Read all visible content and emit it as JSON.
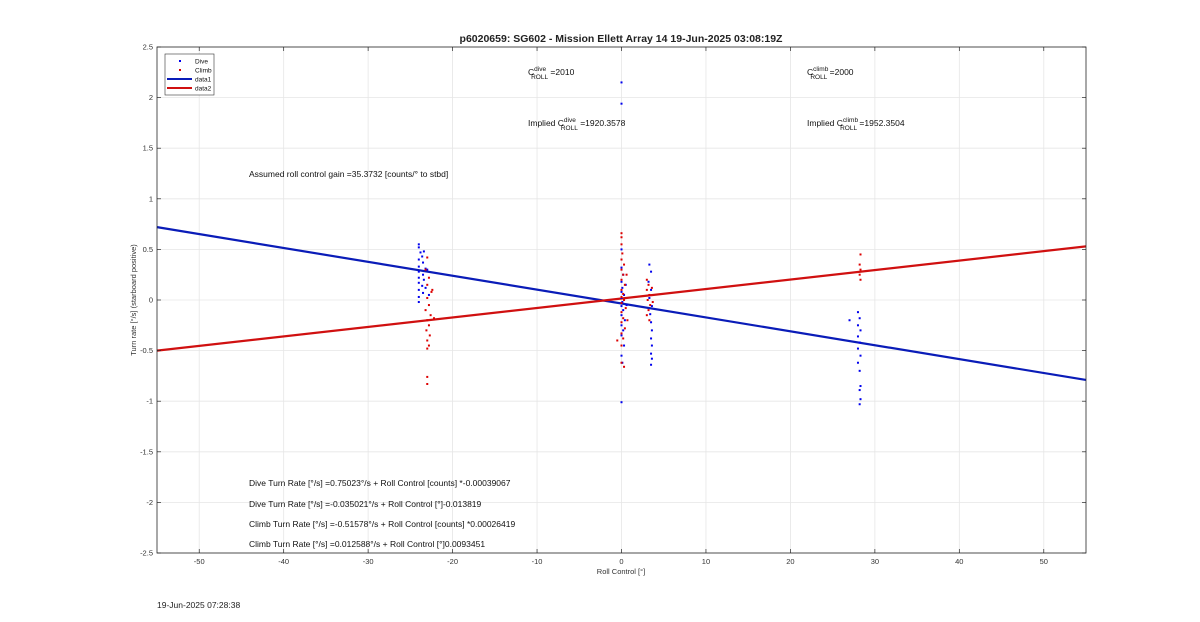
{
  "footer_timestamp": "19-Jun-2025 07:28:38",
  "chart_data": {
    "type": "scatter",
    "title": "p6020659: SG602 - Mission Ellett Array 14 19-Jun-2025 03:08:19Z",
    "xlabel": "Roll Control [°]",
    "ylabel": "Turn rate [°/s] (starboard positive)",
    "xlim": [
      -55,
      55
    ],
    "ylim": [
      -2.5,
      2.5
    ],
    "xticks": [
      -50,
      -40,
      -30,
      -20,
      -10,
      0,
      10,
      20,
      30,
      40,
      50
    ],
    "yticks": [
      -2.5,
      -2,
      -1.5,
      -1,
      -0.5,
      0,
      0.5,
      1,
      1.5,
      2,
      2.5
    ],
    "grid": true,
    "legend_position": "top-left",
    "colors": {
      "blue": "#0000ee",
      "red": "#dd0000",
      "line_blue": "#0a1cb8",
      "line_red": "#d01010"
    },
    "legend": [
      {
        "label": "Dive",
        "kind": "marker",
        "color": "#0000ee"
      },
      {
        "label": "Climb",
        "kind": "marker",
        "color": "#dd0000"
      },
      {
        "label": "data1",
        "kind": "line",
        "color": "#0a1cb8"
      },
      {
        "label": "data2",
        "kind": "line",
        "color": "#d01010"
      }
    ],
    "lines": [
      {
        "name": "data1",
        "color": "#0a1cb8",
        "x": [
          -55,
          55
        ],
        "y": [
          0.72,
          -0.79
        ]
      },
      {
        "name": "data2",
        "color": "#d01010",
        "x": [
          -55,
          55
        ],
        "y": [
          -0.5,
          0.53
        ]
      }
    ],
    "series": [
      {
        "name": "Dive",
        "color": "#0000ee",
        "points": [
          [
            -24,
            0.55
          ],
          [
            -24,
            0.52
          ],
          [
            -23.8,
            0.47
          ],
          [
            -23.6,
            0.43
          ],
          [
            -24,
            0.4
          ],
          [
            -23.5,
            0.37
          ],
          [
            -24,
            0.33
          ],
          [
            -23.2,
            0.31
          ],
          [
            -24,
            0.28
          ],
          [
            -23.5,
            0.25
          ],
          [
            -24,
            0.22
          ],
          [
            -23.4,
            0.2
          ],
          [
            -24,
            0.17
          ],
          [
            -23.6,
            0.14
          ],
          [
            -24,
            0.1
          ],
          [
            -23.5,
            0.07
          ],
          [
            -24,
            0.03
          ],
          [
            -24,
            -0.02
          ],
          [
            -23.4,
            0.48
          ],
          [
            -23,
            0.3
          ],
          [
            -23.2,
            0.12
          ],
          [
            -22.8,
            0.05
          ],
          [
            0,
            2.15
          ],
          [
            0,
            1.94
          ],
          [
            0,
            0.5
          ],
          [
            0,
            0.4
          ],
          [
            0,
            0.32
          ],
          [
            0.2,
            0.25
          ],
          [
            0,
            0.18
          ],
          [
            0.1,
            0.12
          ],
          [
            0,
            0.08
          ],
          [
            0.3,
            0.05
          ],
          [
            0,
            0.02
          ],
          [
            0.1,
            -0.02
          ],
          [
            0,
            -0.06
          ],
          [
            0.2,
            -0.1
          ],
          [
            0,
            -0.15
          ],
          [
            0.4,
            -0.2
          ],
          [
            0,
            -0.25
          ],
          [
            0.2,
            -0.3
          ],
          [
            0,
            -0.35
          ],
          [
            0.3,
            -0.45
          ],
          [
            0,
            -0.55
          ],
          [
            0.1,
            -0.62
          ],
          [
            0,
            -1.01
          ],
          [
            0.5,
            0.15
          ],
          [
            0.6,
            -0.05
          ],
          [
            3.3,
            0.35
          ],
          [
            3.5,
            0.28
          ],
          [
            3.2,
            0.18
          ],
          [
            3.5,
            0.1
          ],
          [
            3.3,
            0.02
          ],
          [
            3.6,
            -0.06
          ],
          [
            3.4,
            -0.14
          ],
          [
            3.5,
            -0.22
          ],
          [
            3.6,
            -0.3
          ],
          [
            3.5,
            -0.38
          ],
          [
            3.6,
            -0.45
          ],
          [
            3.5,
            -0.53
          ],
          [
            3.6,
            -0.58
          ],
          [
            3.5,
            -0.64
          ],
          [
            27,
            -0.2
          ],
          [
            28,
            -0.12
          ],
          [
            28.2,
            -0.18
          ],
          [
            28,
            -0.25
          ],
          [
            28.3,
            -0.3
          ],
          [
            28,
            -0.36
          ],
          [
            28.2,
            -0.42
          ],
          [
            28,
            -0.48
          ],
          [
            28.3,
            -0.55
          ],
          [
            28,
            -0.62
          ],
          [
            28.2,
            -0.7
          ],
          [
            28.3,
            -0.85
          ],
          [
            28.2,
            -0.89
          ],
          [
            28.3,
            -0.98
          ],
          [
            28.2,
            -1.03
          ]
        ]
      },
      {
        "name": "Climb",
        "color": "#dd0000",
        "points": [
          [
            -23,
            0.42
          ],
          [
            -23.2,
            0.3
          ],
          [
            -22.8,
            0.22
          ],
          [
            -23,
            0.15
          ],
          [
            -22.5,
            0.08
          ],
          [
            -23,
            0.02
          ],
          [
            -22.8,
            -0.05
          ],
          [
            -23.2,
            -0.1
          ],
          [
            -22.6,
            -0.15
          ],
          [
            -23,
            -0.2
          ],
          [
            -22.8,
            -0.25
          ],
          [
            -23.1,
            -0.3
          ],
          [
            -22.7,
            -0.35
          ],
          [
            -23,
            -0.4
          ],
          [
            -22.8,
            -0.45
          ],
          [
            -23,
            -0.48
          ],
          [
            -23,
            -0.76
          ],
          [
            -23,
            -0.83
          ],
          [
            -22.4,
            0.1
          ],
          [
            -22.2,
            -0.18
          ],
          [
            0,
            0.66
          ],
          [
            0,
            0.62
          ],
          [
            0,
            0.55
          ],
          [
            0.1,
            0.46
          ],
          [
            0,
            0.4
          ],
          [
            0.3,
            0.35
          ],
          [
            0,
            0.3
          ],
          [
            0.2,
            0.25
          ],
          [
            0,
            0.2
          ],
          [
            0.4,
            0.15
          ],
          [
            0,
            0.1
          ],
          [
            0.2,
            0.06
          ],
          [
            0,
            0.03
          ],
          [
            0.3,
            0.0
          ],
          [
            0,
            -0.03
          ],
          [
            0.5,
            -0.08
          ],
          [
            0,
            -0.12
          ],
          [
            0.2,
            -0.18
          ],
          [
            0,
            -0.22
          ],
          [
            0.4,
            -0.28
          ],
          [
            0,
            -0.33
          ],
          [
            0.2,
            -0.38
          ],
          [
            0,
            -0.45
          ],
          [
            -0.5,
            -0.4
          ],
          [
            0,
            -0.62
          ],
          [
            0.3,
            -0.66
          ],
          [
            0.6,
            0.25
          ],
          [
            0.7,
            -0.2
          ],
          [
            3,
            0.2
          ],
          [
            3.2,
            0.15
          ],
          [
            3,
            0.1
          ],
          [
            3.3,
            0.05
          ],
          [
            3.1,
            0.0
          ],
          [
            3.4,
            -0.05
          ],
          [
            3.2,
            -0.1
          ],
          [
            3,
            -0.15
          ],
          [
            3.3,
            -0.2
          ],
          [
            3.6,
            0.12
          ],
          [
            3.7,
            -0.02
          ],
          [
            28.3,
            0.45
          ],
          [
            28.2,
            0.35
          ],
          [
            28.3,
            0.3
          ],
          [
            28.2,
            0.25
          ],
          [
            28.3,
            0.2
          ]
        ]
      }
    ],
    "annotations": {
      "c_roll_dive_left": "C",
      "c_roll_dive_sup": "dive",
      "c_roll_dive_sub": "ROLL",
      "c_roll_dive_val": " =2010",
      "c_roll_climb_left": "C",
      "c_roll_climb_sup": "climb",
      "c_roll_climb_sub": "ROLL",
      "c_roll_climb_val": " =2000",
      "implied_dive_left": "Implied C",
      "implied_dive_sup": "dive",
      "implied_dive_sub": "ROLL",
      "implied_dive_val": " =1920.3578",
      "implied_climb_left": "Implied C",
      "implied_climb_sup": "climb",
      "implied_climb_sub": "ROLL",
      "implied_climb_val": " =1952.3504",
      "assumed_gain": "Assumed roll control gain =35.3732 [counts/° to stbd]",
      "eq1": "Dive Turn Rate [°/s] =0.75023°/s + Roll Control [counts] *-0.00039067",
      "eq2": "Dive Turn Rate [°/s] =-0.035021°/s + Roll Control [°]-0.013819",
      "eq3": "Climb Turn Rate [°/s] =-0.51578°/s + Roll Control [counts] *0.00026419",
      "eq4": "Climb Turn Rate [°/s] =0.012588°/s + Roll Control [°]0.0093451"
    }
  }
}
